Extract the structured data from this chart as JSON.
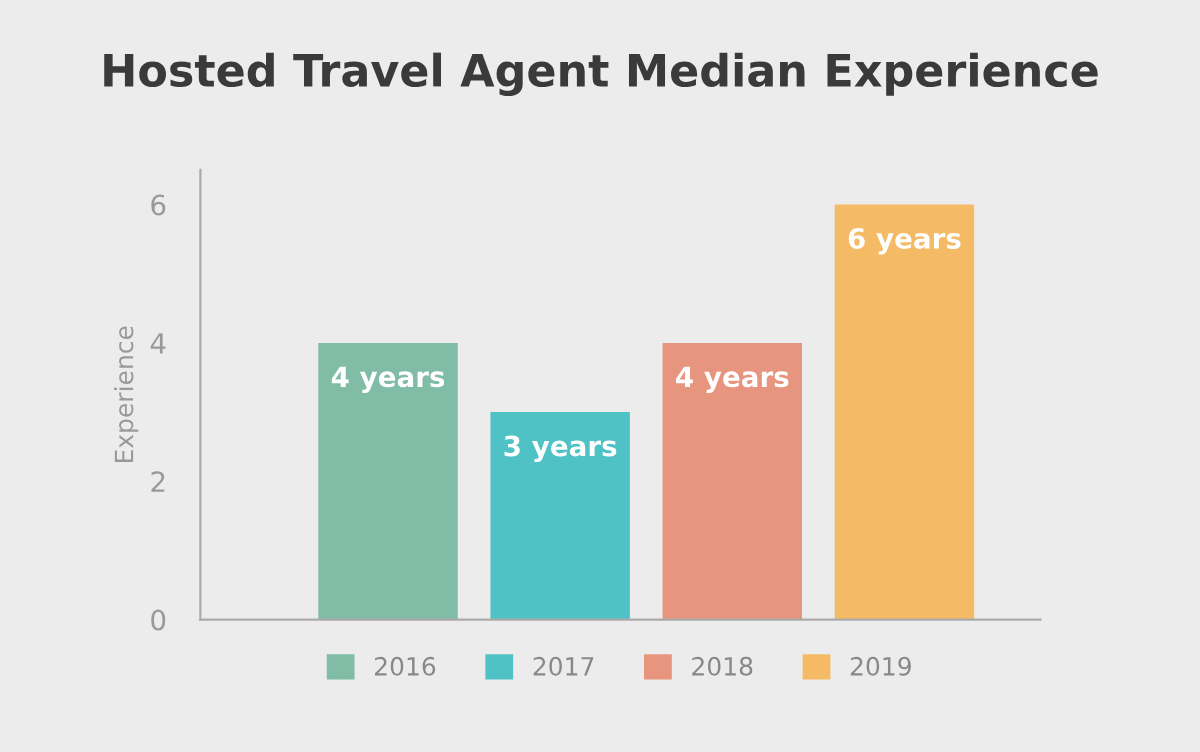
{
  "chart_data": {
    "type": "bar",
    "title": "Hosted Travel Agent Median Experience",
    "ylabel": "Experience",
    "categories": [
      null,
      null,
      null,
      null
    ],
    "series": [
      {
        "name": "2016",
        "color": "#80bca6",
        "values": [
          4,
          null,
          null,
          null
        ],
        "value_labels": [
          "4 years",
          null,
          null,
          null
        ]
      },
      {
        "name": "2017",
        "color": "#4fc2c6",
        "values": [
          null,
          3,
          null,
          null
        ],
        "value_labels": [
          null,
          "3 years",
          null,
          null
        ]
      },
      {
        "name": "2018",
        "color": "#e8957f",
        "values": [
          null,
          null,
          4,
          null
        ],
        "value_labels": [
          null,
          null,
          "4 years",
          null
        ]
      },
      {
        "name": "2019",
        "color": "#f4ba66",
        "values": [
          null,
          null,
          null,
          6
        ],
        "value_labels": [
          null,
          null,
          null,
          "6 years"
        ]
      }
    ],
    "ylim": [
      0,
      6.5
    ],
    "yticks": [
      0,
      2,
      4,
      6
    ],
    "grid": false,
    "legend": "bottom"
  }
}
